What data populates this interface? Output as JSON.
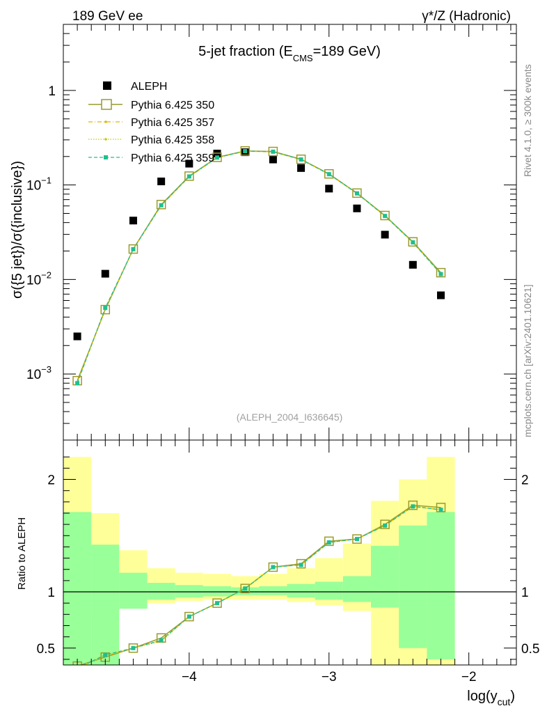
{
  "header": {
    "left_label": "189 GeV ee",
    "right_label": "γ*/Z (Hadronic)",
    "side_label_top": "Rivet 4.1.0, ≥ 300k events",
    "side_label_bottom": "mcplots.cern.ch [arXiv:2401.10621]"
  },
  "colors": {
    "aleph": "#000000",
    "pythia_350": "#9a9a2a",
    "pythia_357": "#e0b800",
    "pythia_358": "#c8c800",
    "pythia_359": "#1fbf8f",
    "band_inner": "#99ff99",
    "band_outer": "#ffff99"
  },
  "chart_data": [
    {
      "type": "scatter",
      "title": "5-jet fraction (E_CMS=189 GeV)",
      "title_main": "5-jet fraction (E",
      "title_sub": "CMS",
      "title_tail": "=189 GeV)",
      "ylabel": "σ({5 jet})/σ({inclusive})",
      "xlabel": "",
      "yscale": "log",
      "ylim": [
        0.0002,
        5
      ],
      "xlim": [
        -4.9,
        -1.66
      ],
      "y_tick_labels": [
        {
          "base": "10",
          "exp": "−3",
          "value": 0.001
        },
        {
          "base": "10",
          "exp": "−2",
          "value": 0.01
        },
        {
          "base": "10",
          "exp": "−1",
          "value": 0.1
        },
        {
          "base": "1",
          "exp": "",
          "value": 1
        }
      ],
      "watermark": "(ALEPH_2004_I636645)",
      "legend_position": "top-left",
      "series": [
        {
          "name": "ALEPH",
          "marker": "square",
          "x": [
            -4.8,
            -4.6,
            -4.4,
            -4.2,
            -4.0,
            -3.8,
            -3.6,
            -3.4,
            -3.2,
            -3.0,
            -2.8,
            -2.6,
            -2.4,
            -2.2
          ],
          "values": [
            0.0025,
            0.0115,
            0.042,
            0.109,
            0.168,
            0.215,
            0.222,
            0.186,
            0.151,
            0.0915,
            0.0565,
            0.0298,
            0.0143,
            0.0068
          ]
        },
        {
          "name": "Pythia 6.425 350",
          "marker": "open-square",
          "x": [
            -4.8,
            -4.6,
            -4.4,
            -4.2,
            -4.0,
            -3.8,
            -3.6,
            -3.4,
            -3.2,
            -3.0,
            -2.8,
            -2.6,
            -2.4,
            -2.2
          ],
          "values": [
            0.00085,
            0.0048,
            0.021,
            0.062,
            0.124,
            0.196,
            0.229,
            0.226,
            0.187,
            0.131,
            0.082,
            0.0475,
            0.025,
            0.0118
          ]
        },
        {
          "name": "Pythia 6.425 357",
          "marker": "dot",
          "x": [
            -4.8,
            -4.6,
            -4.4,
            -4.2,
            -4.0,
            -3.8,
            -3.6,
            -3.4,
            -3.2,
            -3.0,
            -2.8,
            -2.6,
            -2.4,
            -2.2
          ],
          "values": [
            0.00082,
            0.0049,
            0.021,
            0.061,
            0.122,
            0.194,
            0.228,
            0.224,
            0.186,
            0.13,
            0.0815,
            0.047,
            0.0247,
            0.0115
          ]
        },
        {
          "name": "Pythia 6.425 358",
          "marker": "dot",
          "x": [
            -4.8,
            -4.6,
            -4.4,
            -4.2,
            -4.0,
            -3.8,
            -3.6,
            -3.4,
            -3.2,
            -3.0,
            -2.8,
            -2.6,
            -2.4,
            -2.2
          ],
          "values": [
            0.00081,
            0.0049,
            0.0208,
            0.0605,
            0.122,
            0.194,
            0.227,
            0.224,
            0.185,
            0.13,
            0.081,
            0.0468,
            0.0246,
            0.0115
          ]
        },
        {
          "name": "Pythia 6.425 359",
          "marker": "filled-square",
          "x": [
            -4.8,
            -4.6,
            -4.4,
            -4.2,
            -4.0,
            -3.8,
            -3.6,
            -3.4,
            -3.2,
            -3.0,
            -2.8,
            -2.6,
            -2.4,
            -2.2
          ],
          "values": [
            0.0008,
            0.005,
            0.0209,
            0.061,
            0.123,
            0.195,
            0.228,
            0.225,
            0.186,
            0.13,
            0.0815,
            0.047,
            0.0247,
            0.0114
          ]
        }
      ]
    },
    {
      "type": "line",
      "ylabel": "Ratio to ALEPH",
      "xlabel": "log(y_cut)",
      "xlabel_main": "log(y",
      "xlabel_sub": "cut",
      "xlabel_tail": ")",
      "ylim": [
        0.35,
        2.35
      ],
      "xlim": [
        -4.9,
        -1.66
      ],
      "y_ticks": [
        0.5,
        1,
        2
      ],
      "y_tick_labels": [
        "0.5",
        "1",
        "2"
      ],
      "x_ticks": [
        -4,
        -3,
        -2
      ],
      "x_tick_labels": [
        "−4",
        "−3",
        "−2"
      ],
      "reference_line": 1,
      "bins": [
        -4.9,
        -4.7,
        -4.5,
        -4.3,
        -4.1,
        -3.9,
        -3.7,
        -3.5,
        -3.3,
        -3.1,
        -2.9,
        -2.7,
        -2.5,
        -2.3,
        -2.1
      ],
      "band_inner": {
        "low": [
          0.0,
          0.0,
          0.85,
          0.93,
          0.95,
          0.96,
          0.97,
          0.97,
          0.95,
          0.93,
          0.91,
          0.86,
          0.5,
          0.4
        ],
        "high": [
          1.71,
          1.42,
          1.17,
          1.08,
          1.06,
          1.05,
          1.04,
          1.05,
          1.07,
          1.09,
          1.14,
          1.41,
          1.59,
          1.71
        ]
      },
      "band_outer": {
        "low": [
          0.0,
          0.75,
          0.88,
          0.9,
          0.92,
          0.93,
          0.93,
          0.93,
          0.91,
          0.88,
          0.83,
          0.0,
          0.0,
          0.0
        ],
        "high": [
          2.2,
          1.7,
          1.37,
          1.21,
          1.17,
          1.16,
          1.14,
          1.16,
          1.21,
          1.3,
          1.43,
          1.81,
          2.0,
          2.2
        ]
      },
      "series": [
        {
          "name": "Pythia 6.425 350",
          "x": [
            -4.8,
            -4.6,
            -4.4,
            -4.2,
            -4.0,
            -3.8,
            -3.6,
            -3.4,
            -3.2,
            -3.0,
            -2.8,
            -2.6,
            -2.4,
            -2.2
          ],
          "values": [
            0.34,
            0.42,
            0.5,
            0.59,
            0.78,
            0.9,
            1.03,
            1.22,
            1.25,
            1.45,
            1.47,
            1.6,
            1.77,
            1.75
          ]
        },
        {
          "name": "Pythia 6.425 357",
          "x": [
            -4.8,
            -4.6,
            -4.4,
            -4.2,
            -4.0,
            -3.8,
            -3.6,
            -3.4,
            -3.2,
            -3.0,
            -2.8,
            -2.6,
            -2.4,
            -2.2
          ],
          "values": [
            0.33,
            0.43,
            0.5,
            0.57,
            0.78,
            0.9,
            1.03,
            1.22,
            1.24,
            1.44,
            1.47,
            1.59,
            1.76,
            1.73
          ]
        },
        {
          "name": "Pythia 6.425 358",
          "x": [
            -4.8,
            -4.6,
            -4.4,
            -4.2,
            -4.0,
            -3.8,
            -3.6,
            -3.4,
            -3.2,
            -3.0,
            -2.8,
            -2.6,
            -2.4,
            -2.2
          ],
          "values": [
            0.32,
            0.43,
            0.5,
            0.56,
            0.78,
            0.9,
            1.03,
            1.22,
            1.24,
            1.44,
            1.47,
            1.59,
            1.76,
            1.73
          ]
        },
        {
          "name": "Pythia 6.425 359",
          "x": [
            -4.8,
            -4.6,
            -4.4,
            -4.2,
            -4.0,
            -3.8,
            -3.6,
            -3.4,
            -3.2,
            -3.0,
            -2.8,
            -2.6,
            -2.4,
            -2.2
          ],
          "values": [
            0.32,
            0.44,
            0.5,
            0.57,
            0.78,
            0.9,
            1.03,
            1.22,
            1.24,
            1.44,
            1.47,
            1.59,
            1.76,
            1.73
          ]
        }
      ]
    }
  ]
}
